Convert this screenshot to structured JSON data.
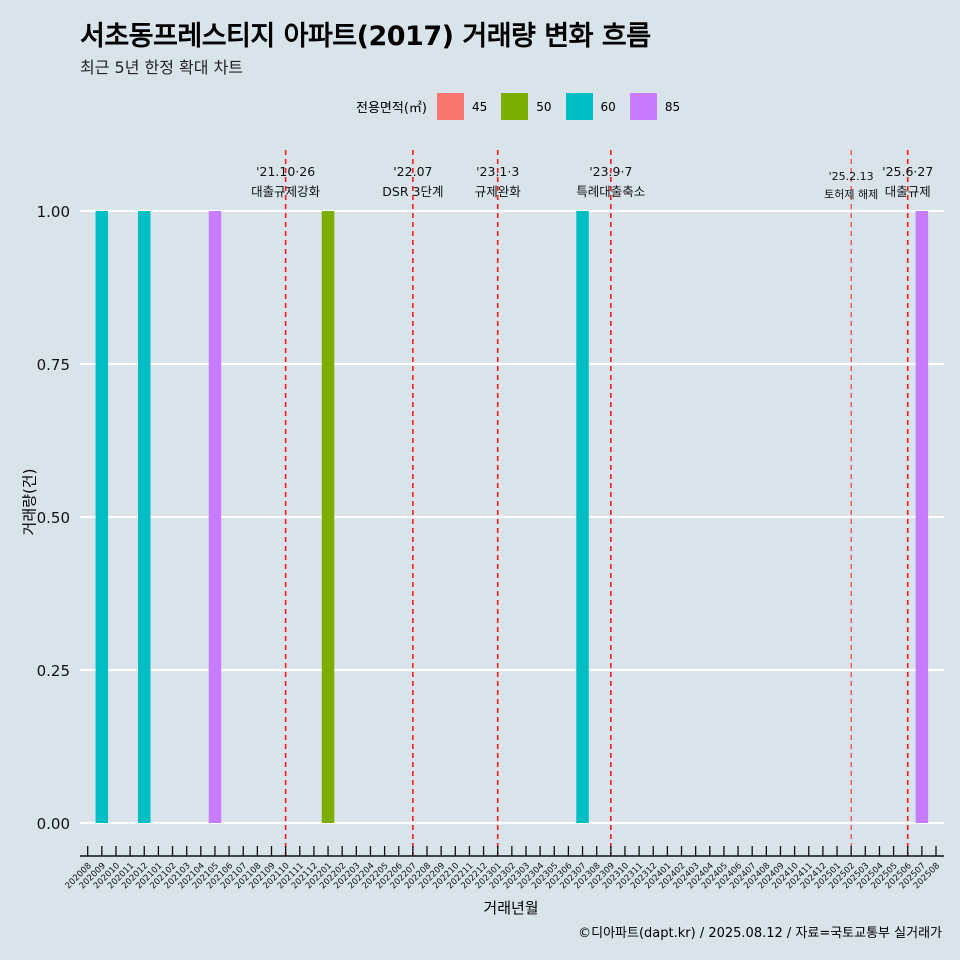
{
  "title": "서초동프레스티지 아파트(2017) 거래량 변화 흐름",
  "subtitle": "최근 5년 한정 확대 차트",
  "caption": "©디아파트(dapt.kr) / 2025.08.12 / 자료=국토교통부 실거래가",
  "legend": {
    "title": "전용면적(㎡)",
    "items": [
      {
        "label": "45",
        "color": "#f8766d"
      },
      {
        "label": "50",
        "color": "#7cae00"
      },
      {
        "label": "60",
        "color": "#00bfc4"
      },
      {
        "label": "85",
        "color": "#c77cff"
      }
    ]
  },
  "chart_data": {
    "type": "bar",
    "xlabel": "거래년월",
    "ylabel": "거래량(건)",
    "ylim": [
      0,
      1
    ],
    "y_ticks": [
      "0.00",
      "0.25",
      "0.50",
      "0.75",
      "1.00"
    ],
    "categories": [
      "202008",
      "202009",
      "202010",
      "202011",
      "202012",
      "202101",
      "202102",
      "202103",
      "202104",
      "202105",
      "202106",
      "202107",
      "202108",
      "202109",
      "202110",
      "202111",
      "202112",
      "202201",
      "202202",
      "202203",
      "202204",
      "202205",
      "202206",
      "202207",
      "202208",
      "202209",
      "202210",
      "202211",
      "202212",
      "202301",
      "202302",
      "202303",
      "202304",
      "202305",
      "202306",
      "202307",
      "202308",
      "202309",
      "202310",
      "202311",
      "202312",
      "202401",
      "202402",
      "202403",
      "202404",
      "202405",
      "202406",
      "202407",
      "202408",
      "202409",
      "202410",
      "202411",
      "202412",
      "202501",
      "202502",
      "202503",
      "202504",
      "202505",
      "202506",
      "202507",
      "202508"
    ],
    "bars": [
      {
        "month": "202009",
        "area": "60",
        "value": 1
      },
      {
        "month": "202012",
        "area": "60",
        "value": 1
      },
      {
        "month": "202105",
        "area": "85",
        "value": 1
      },
      {
        "month": "202201",
        "area": "50",
        "value": 1
      },
      {
        "month": "202307",
        "area": "60",
        "value": 1
      },
      {
        "month": "202507",
        "area": "85",
        "value": 1
      }
    ],
    "events": [
      {
        "month": "202110",
        "date": "'21.10·26",
        "label": "대출규제강화"
      },
      {
        "month": "202207",
        "date": "'22.07",
        "label": "DSR 3단계"
      },
      {
        "month": "202301",
        "date": "'23.1·3",
        "label": "규제완화"
      },
      {
        "month": "202309",
        "date": "'23.9·7",
        "label": "특례대출축소"
      },
      {
        "month": "202502",
        "date": "'25.2.13",
        "label": "토허제 해제"
      },
      {
        "month": "202506",
        "date": "'25.6·27",
        "label": "대출규제"
      }
    ],
    "grid": true,
    "legend_position": "top"
  }
}
